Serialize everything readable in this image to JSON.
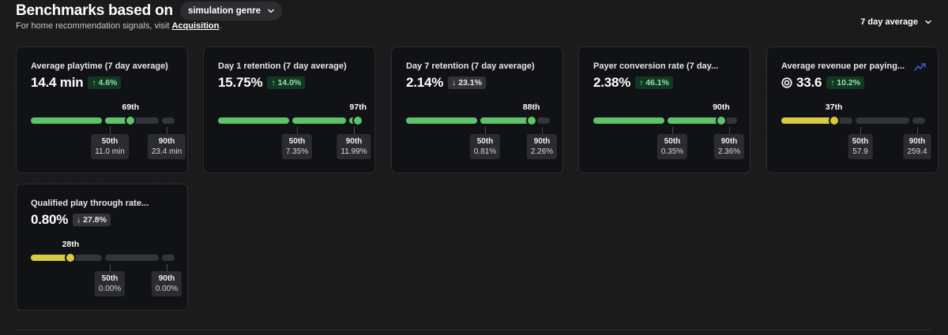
{
  "header": {
    "title": "Benchmarks based on",
    "genre_selected": "simulation genre",
    "subtitle_prefix": "For home recommendation signals, visit ",
    "subtitle_link": "Acquisition",
    "subtitle_suffix": ".",
    "period_selected": "7 day average"
  },
  "colors": {
    "above_median": "#5ec46c",
    "below_median": "#d8ca43",
    "positive_change_bg": "#123823",
    "positive_change_text": "#8be3a6"
  },
  "cards": [
    {
      "title": "Average playtime (7 day average)",
      "value": "14.4 min",
      "change": "4.6%",
      "direction": "up",
      "percentile_label": "69th",
      "percentile": 69,
      "color": "green",
      "show_robux": false,
      "show_trend": false,
      "b50_label": "50th",
      "b50_value": "11.0 min",
      "b90_label": "90th",
      "b90_value": "23.4 min"
    },
    {
      "title": "Day 1 retention (7 day average)",
      "value": "15.75%",
      "change": "14.0%",
      "direction": "up",
      "percentile_label": "97th",
      "percentile": 97,
      "color": "green",
      "show_robux": false,
      "show_trend": false,
      "b50_label": "50th",
      "b50_value": "7.35%",
      "b90_label": "90th",
      "b90_value": "11.99%"
    },
    {
      "title": "Day 7 retention (7 day average)",
      "value": "2.14%",
      "change": "23.1%",
      "direction": "down",
      "percentile_label": "88th",
      "percentile": 88,
      "color": "green",
      "show_robux": false,
      "show_trend": false,
      "b50_label": "50th",
      "b50_value": "0.81%",
      "b90_label": "90th",
      "b90_value": "2.26%"
    },
    {
      "title": "Payer conversion rate (7 day...",
      "value": "2.38%",
      "change": "46.1%",
      "direction": "up",
      "percentile_label": "90th",
      "percentile": 90,
      "color": "green",
      "show_robux": false,
      "show_trend": false,
      "b50_label": "50th",
      "b50_value": "0.35%",
      "b90_label": "90th",
      "b90_value": "2.36%"
    },
    {
      "title": "Average revenue per paying...",
      "value": "33.6",
      "change": "10.2%",
      "direction": "up",
      "percentile_label": "37th",
      "percentile": 37,
      "color": "yellow",
      "show_robux": true,
      "show_trend": true,
      "b50_label": "50th",
      "b50_value": "57.9",
      "b90_label": "90th",
      "b90_value": "259.4"
    },
    {
      "title": "Qualified play through rate...",
      "value": "0.80%",
      "change": "27.8%",
      "direction": "down",
      "percentile_label": "28th",
      "percentile": 28,
      "color": "yellow",
      "show_robux": false,
      "show_trend": false,
      "b50_label": "50th",
      "b50_value": "0.00%",
      "b90_label": "90th",
      "b90_value": "0.00%"
    }
  ]
}
